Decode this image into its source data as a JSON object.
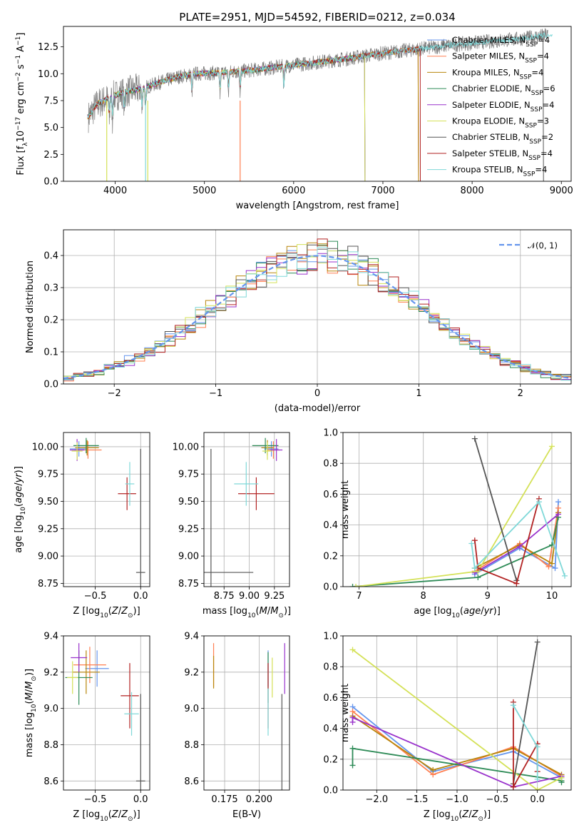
{
  "colors": [
    "#6495ed",
    "#ff7f50",
    "#b8860b",
    "#2e8b57",
    "#9932cc",
    "#d4e157",
    "#555555",
    "#b22222",
    "#7fd8d8"
  ],
  "chart_data": [
    {
      "id": "spectrum",
      "type": "line",
      "title": "PLATE=2951, MJD=54592, FIBERID=0212, z=0.034",
      "xlabel": "wavelength [Angstrom, rest frame]",
      "ylabel": "Flux [f$_\\lambda$10$^{-17}$ erg cm$^{-2}$ s$^{-1}$ A$^{-1}$]",
      "ylabel_parts": [
        "Flux [f",
        "λ",
        "10",
        "−17",
        " erg cm",
        "−2",
        " s",
        "−1",
        " A",
        "−1",
        "]"
      ],
      "xlim": [
        3420,
        9110
      ],
      "ylim": [
        0,
        14.4
      ],
      "xticks": [
        4000,
        5000,
        6000,
        7000,
        8000,
        9000
      ],
      "yticks": [
        0.0,
        2.5,
        5.0,
        7.5,
        10.0,
        12.5
      ],
      "ytick_labels": [
        "0.0",
        "2.5",
        "5.0",
        "7.5",
        "10.0",
        "12.5"
      ],
      "continuum": [
        [
          3700,
          6.0
        ],
        [
          3800,
          7.2
        ],
        [
          3950,
          7.8
        ],
        [
          4100,
          8.3
        ],
        [
          4300,
          8.6
        ],
        [
          4500,
          9.2
        ],
        [
          4700,
          9.7
        ],
        [
          4900,
          10.0
        ],
        [
          5200,
          10.1
        ],
        [
          5500,
          10.3
        ],
        [
          5800,
          10.6
        ],
        [
          6000,
          10.8
        ],
        [
          6300,
          11.1
        ],
        [
          6600,
          11.4
        ],
        [
          6900,
          11.8
        ],
        [
          7200,
          12.1
        ],
        [
          7500,
          12.4
        ],
        [
          7800,
          12.7
        ],
        [
          8200,
          13.0
        ],
        [
          8600,
          13.3
        ],
        [
          8850,
          13.6
        ]
      ],
      "absorption_lines": [
        3934,
        3969,
        4102,
        4300,
        4340,
        4861,
        5175,
        5270,
        5400,
        5890
      ],
      "series": [
        {
          "name_main": "Chabrier MILES, N",
          "name_sub": "SSP",
          "name_tail": "=4",
          "end": 7400
        },
        {
          "name_main": "Salpeter MILES, N",
          "name_sub": "SSP",
          "name_tail": "=4",
          "end": 7400
        },
        {
          "name_main": "Kroupa MILES, N",
          "name_sub": "SSP",
          "name_tail": "=4",
          "end": 7400
        },
        {
          "name_main": "Chabrier ELODIE, N",
          "name_sub": "SSP",
          "name_tail": "=6",
          "end": 6800
        },
        {
          "name_main": "Salpeter ELODIE, N",
          "name_sub": "SSP",
          "name_tail": "=4",
          "end": 6800
        },
        {
          "name_main": "Kroupa ELODIE, N",
          "name_sub": "SSP",
          "name_tail": "=3",
          "end": 6800
        },
        {
          "name_main": "Chabrier STELIB, N",
          "name_sub": "SSP",
          "name_tail": "=2",
          "end": 8800
        },
        {
          "name_main": "Salpeter STELIB, N",
          "name_sub": "SSP",
          "name_tail": "=4",
          "end": 7420
        },
        {
          "name_main": "Kroupa STELIB, N",
          "name_sub": "SSP",
          "name_tail": "=4",
          "end": 8900
        }
      ],
      "legend": "top-right"
    },
    {
      "id": "residuals",
      "type": "line",
      "xlabel": "(data-model)/error",
      "ylabel": "Normed distribution",
      "xlim": [
        -2.5,
        2.5
      ],
      "ylim": [
        0,
        0.48
      ],
      "xticks": [
        -2,
        -1,
        0,
        1,
        2
      ],
      "xtick_labels": [
        "−2",
        "−1",
        "0",
        "1",
        "2"
      ],
      "yticks": [
        0.0,
        0.1,
        0.2,
        0.3,
        0.4
      ],
      "ytick_labels": [
        "0.0",
        "0.1",
        "0.2",
        "0.3",
        "0.4"
      ],
      "bin_width": 0.1,
      "reference_label": "𝒩(0, 1)",
      "grid": true,
      "legend": "top-right"
    },
    {
      "id": "age_vs_Z",
      "type": "scatter",
      "xlabel": "Z [log$_{10}$($Z/Z_\\odot$)]",
      "ylabel": "age  [log$_{10}$($age/yr$)]",
      "xlim": [
        -0.85,
        0.1
      ],
      "ylim": [
        8.72,
        10.13
      ],
      "xticks": [
        -0.5,
        0.0
      ],
      "xtick_labels": [
        "−0.5",
        "0.0"
      ],
      "yticks": [
        8.75,
        9.0,
        9.25,
        9.5,
        9.75,
        10.0
      ],
      "ytick_labels": [
        "8.75",
        "9.00",
        "9.25",
        "9.50",
        "9.75",
        "10.00"
      ],
      "points": [
        {
          "x": -0.68,
          "y": 9.98,
          "xerr": 0.1,
          "yerr": 0.07
        },
        {
          "x": -0.58,
          "y": 9.97,
          "xerr": 0.15,
          "yerr": 0.08
        },
        {
          "x": -0.59,
          "y": 9.99,
          "xerr": 0.13,
          "yerr": 0.07
        },
        {
          "x": -0.6,
          "y": 10.01,
          "xerr": 0.14,
          "yerr": 0.07
        },
        {
          "x": -0.7,
          "y": 9.97,
          "xerr": 0.08,
          "yerr": 0.1
        },
        {
          "x": -0.7,
          "y": 9.96,
          "xerr": 0.06,
          "yerr": 0.08
        },
        {
          "x": 0.0,
          "y": 8.85,
          "xerr": 0.05,
          "yerr": 1.13
        },
        {
          "x": -0.15,
          "y": 9.57,
          "xerr": 0.1,
          "yerr": 0.15
        },
        {
          "x": -0.12,
          "y": 9.66,
          "xerr": 0.05,
          "yerr": 0.2
        }
      ]
    },
    {
      "id": "age_vs_mass",
      "type": "scatter",
      "xlabel": "mass [log$_{10}$($M/M_\\odot$)]",
      "ylabel": "",
      "xlim": [
        8.55,
        9.4
      ],
      "ylim": [
        8.72,
        10.13
      ],
      "xticks": [
        8.75,
        9.0,
        9.25
      ],
      "xtick_labels": [
        "8.75",
        "9.00",
        "9.25"
      ],
      "yticks": [
        8.75,
        9.0,
        9.25,
        9.5,
        9.75,
        10.0
      ],
      "ytick_labels": [
        "8.75",
        "9.00",
        "9.25",
        "9.50",
        "9.75",
        "10.00"
      ],
      "points": [
        {
          "x": 9.22,
          "y": 9.98,
          "xerr": 0.07,
          "yerr": 0.07
        },
        {
          "x": 9.24,
          "y": 9.97,
          "xerr": 0.06,
          "yerr": 0.08
        },
        {
          "x": 9.18,
          "y": 9.99,
          "xerr": 0.06,
          "yerr": 0.07
        },
        {
          "x": 9.16,
          "y": 10.01,
          "xerr": 0.13,
          "yerr": 0.07
        },
        {
          "x": 9.27,
          "y": 9.97,
          "xerr": 0.06,
          "yerr": 0.1
        },
        {
          "x": 9.18,
          "y": 9.96,
          "xerr": 0.05,
          "yerr": 0.08
        },
        {
          "x": 8.62,
          "y": 8.85,
          "xerr": 0.42,
          "yerr": 1.13
        },
        {
          "x": 9.07,
          "y": 9.57,
          "xerr": 0.18,
          "yerr": 0.15
        },
        {
          "x": 8.97,
          "y": 9.66,
          "xerr": 0.12,
          "yerr": 0.2
        }
      ]
    },
    {
      "id": "weight_vs_age",
      "type": "line",
      "xlabel": "age  [log$_{10}$($age/yr$)]",
      "ylabel": "mass weight",
      "xlim": [
        6.75,
        10.3
      ],
      "ylim": [
        0,
        1.0
      ],
      "xticks": [
        7,
        8,
        9,
        10
      ],
      "xtick_labels": [
        "7",
        "8",
        "9",
        "10"
      ],
      "yticks": [
        0.0,
        0.2,
        0.4,
        0.6,
        0.8,
        1.0
      ],
      "ytick_labels": [
        "0.0",
        "0.2",
        "0.4",
        "0.6",
        "0.8",
        "1.0"
      ],
      "series": [
        {
          "x": [
            8.8,
            9.5,
            10.05,
            10.1
          ],
          "y": [
            0.08,
            0.25,
            0.12,
            0.55
          ]
        },
        {
          "x": [
            8.8,
            9.5,
            9.95,
            10.1
          ],
          "y": [
            0.1,
            0.28,
            0.13,
            0.51
          ]
        },
        {
          "x": [
            8.8,
            9.5,
            10.0,
            10.1
          ],
          "y": [
            0.12,
            0.27,
            0.15,
            0.48
          ]
        },
        {
          "x": [
            6.9,
            8.85,
            10.0,
            10.1
          ],
          "y": [
            0.0,
            0.06,
            0.27,
            0.45
          ]
        },
        {
          "x": [
            8.8,
            9.5,
            10.1
          ],
          "y": [
            0.09,
            0.26,
            0.47
          ]
        },
        {
          "x": [
            6.95,
            8.85,
            10.0
          ],
          "y": [
            0.0,
            0.1,
            0.91
          ]
        },
        {
          "x": [
            8.8,
            9.45
          ],
          "y": [
            0.96,
            0.04
          ]
        },
        {
          "x": [
            8.8,
            8.85,
            9.45,
            9.8
          ],
          "y": [
            0.3,
            0.12,
            0.02,
            0.57
          ]
        },
        {
          "x": [
            8.75,
            8.8,
            9.8,
            10.2
          ],
          "y": [
            0.28,
            0.12,
            0.55,
            0.07
          ]
        }
      ]
    },
    {
      "id": "mass_vs_Z",
      "type": "scatter",
      "xlabel": "Z [log$_{10}$($Z/Z_\\odot$)]",
      "ylabel": "mass [log$_{10}$($M/M_\\odot$)]",
      "xlim": [
        -0.85,
        0.1
      ],
      "ylim": [
        8.55,
        9.4
      ],
      "xticks": [
        -0.5,
        0.0
      ],
      "xtick_labels": [
        "−0.5",
        "0.0"
      ],
      "yticks": [
        8.6,
        8.8,
        9.0,
        9.2,
        9.4
      ],
      "ytick_labels": [
        "8.6",
        "8.8",
        "9.0",
        "9.2",
        "9.4"
      ],
      "points": [
        {
          "x": -0.48,
          "y": 9.22,
          "xerr": 0.13,
          "yerr": 0.1
        },
        {
          "x": -0.56,
          "y": 9.24,
          "xerr": 0.18,
          "yerr": 0.1
        },
        {
          "x": -0.6,
          "y": 9.2,
          "xerr": 0.15,
          "yerr": 0.12
        },
        {
          "x": -0.68,
          "y": 9.17,
          "xerr": 0.15,
          "yerr": 0.15
        },
        {
          "x": -0.68,
          "y": 9.28,
          "xerr": 0.09,
          "yerr": 0.08
        },
        {
          "x": -0.75,
          "y": 9.17,
          "xerr": 0.06,
          "yerr": 0.09
        },
        {
          "x": 0.0,
          "y": 8.6,
          "xerr": 0.05,
          "yerr": 0.48
        },
        {
          "x": -0.12,
          "y": 9.07,
          "xerr": 0.1,
          "yerr": 0.18
        },
        {
          "x": -0.1,
          "y": 8.97,
          "xerr": 0.08,
          "yerr": 0.12
        }
      ]
    },
    {
      "id": "mass_vs_EBV",
      "type": "scatter",
      "xlabel": "E(B-V)",
      "ylabel": "",
      "xlim": [
        0.16,
        0.222
      ],
      "ylim": [
        8.55,
        9.4
      ],
      "xticks": [
        0.175,
        0.2
      ],
      "xtick_labels": [
        "0.175",
        "0.200"
      ],
      "yticks": [
        8.6,
        8.8,
        9.0,
        9.2,
        9.4
      ],
      "ytick_labels": [
        "8.6",
        "8.8",
        "9.0",
        "9.2",
        "9.4"
      ],
      "points": [
        {
          "x": 0.2065,
          "y": 9.22,
          "yerr": 0.1
        },
        {
          "x": 0.167,
          "y": 9.24,
          "yerr": 0.12
        },
        {
          "x": 0.167,
          "y": 9.2,
          "yerr": 0.09
        },
        {
          "x": 0.2065,
          "y": 9.17,
          "yerr": 0.14
        },
        {
          "x": 0.2185,
          "y": 9.22,
          "yerr": 0.14
        },
        {
          "x": 0.2095,
          "y": 9.17,
          "yerr": 0.11
        },
        {
          "x": 0.2165,
          "y": 8.6,
          "yerr": 0.48
        },
        {
          "x": 0.2065,
          "y": 9.07,
          "yerr": 0.18
        },
        {
          "x": 0.2065,
          "y": 8.98,
          "yerr": 0.13
        }
      ]
    },
    {
      "id": "weight_vs_Z",
      "type": "line",
      "xlabel": "Z [log$_{10}$($Z/Z_\\odot$)]",
      "ylabel": "mass weight",
      "xlim": [
        -2.42,
        0.42
      ],
      "ylim": [
        0,
        1.0
      ],
      "xticks": [
        -2.0,
        -1.5,
        -1.0,
        -0.5,
        0.0
      ],
      "xtick_labels": [
        "−2.0",
        "−1.5",
        "−1.0",
        "−0.5",
        "0.0"
      ],
      "yticks": [
        0.0,
        0.2,
        0.4,
        0.6,
        0.8,
        1.0
      ],
      "ytick_labels": [
        "0.0",
        "0.2",
        "0.4",
        "0.6",
        "0.8",
        "1.0"
      ],
      "series": [
        {
          "x": [
            -2.3,
            -1.3,
            -0.3,
            0.3
          ],
          "y": [
            0.54,
            0.12,
            0.25,
            0.08
          ]
        },
        {
          "x": [
            -2.3,
            -1.3,
            -0.3,
            0.3
          ],
          "y": [
            0.51,
            0.1,
            0.28,
            0.09
          ]
        },
        {
          "x": [
            -2.3,
            -1.3,
            -0.3,
            0.3
          ],
          "y": [
            0.48,
            0.13,
            0.27,
            0.1
          ]
        },
        {
          "x": [
            -2.3,
            -2.3,
            0.3,
            0.3
          ],
          "y": [
            0.16,
            0.27,
            0.06,
            0.05
          ]
        },
        {
          "x": [
            -2.3,
            -2.3,
            -0.3,
            0.3
          ],
          "y": [
            0.44,
            0.47,
            0.02,
            0.09
          ]
        },
        {
          "x": [
            -2.3,
            0.0,
            0.3
          ],
          "y": [
            0.91,
            0.0,
            0.08
          ]
        },
        {
          "x": [
            -0.3,
            0.0
          ],
          "y": [
            0.04,
            0.96
          ]
        },
        {
          "x": [
            -0.3,
            -0.3,
            0.0,
            0.0
          ],
          "y": [
            0.57,
            0.02,
            0.3,
            0.12
          ]
        },
        {
          "x": [
            -0.3,
            0.0,
            0.0
          ],
          "y": [
            0.55,
            0.28,
            0.07
          ]
        }
      ]
    }
  ]
}
